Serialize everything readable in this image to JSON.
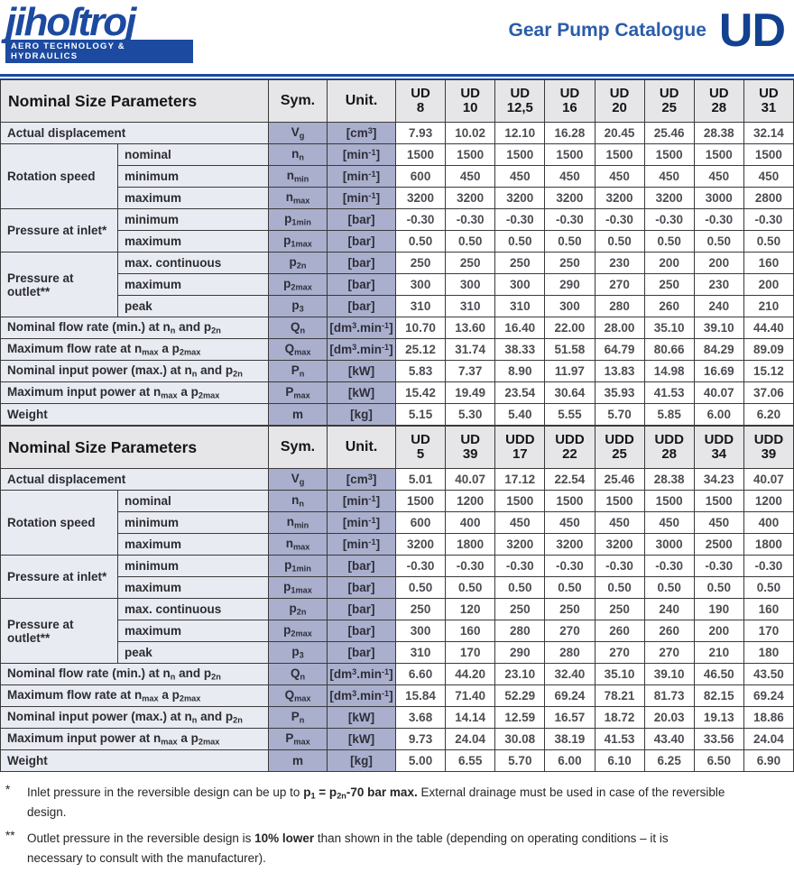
{
  "header": {
    "logo_text": "jihoſtroj",
    "logo_tagline": "AERO TECHNOLOGY & HYDRAULICS",
    "catalogue_title": "Gear Pump Catalogue",
    "series_code": "UD"
  },
  "colors": {
    "brand_blue": "#1c4aa0",
    "series_navy": "#12418f",
    "title_blue": "#2b5caa",
    "table_border": "#3a3a3a",
    "header_row_bg": "#e6e6e8",
    "label_bg": "#e9ebf3",
    "sym_unit_bg": "#a9afcc",
    "value_bg": "#ffffff"
  },
  "table_header": {
    "params_label": "Nominal Size Parameters",
    "sym_label": "Sym.",
    "unit_label": "Unit."
  },
  "tables": [
    {
      "columns": [
        {
          "series": "UD",
          "size": "8"
        },
        {
          "series": "UD",
          "size": "10"
        },
        {
          "series": "UD",
          "size": "12,5"
        },
        {
          "series": "UD",
          "size": "16"
        },
        {
          "series": "UD",
          "size": "20"
        },
        {
          "series": "UD",
          "size": "25"
        },
        {
          "series": "UD",
          "size": "28"
        },
        {
          "series": "UD",
          "size": "31"
        }
      ],
      "rows": [
        {
          "type": "full",
          "label": "Actual displacement",
          "sym": "V~g~",
          "unit": "[cm^3^]",
          "values": [
            "7.93",
            "10.02",
            "12.10",
            "16.28",
            "20.45",
            "25.46",
            "28.38",
            "32.14"
          ]
        },
        {
          "type": "group",
          "label": "Rotation speed",
          "items": [
            {
              "label": "nominal",
              "sym": "n~n~",
              "unit": "[min^-1^]",
              "values": [
                "1500",
                "1500",
                "1500",
                "1500",
                "1500",
                "1500",
                "1500",
                "1500"
              ]
            },
            {
              "label": "minimum",
              "sym": "n~min~",
              "unit": "[min^-1^]",
              "values": [
                "600",
                "450",
                "450",
                "450",
                "450",
                "450",
                "450",
                "450"
              ]
            },
            {
              "label": "maximum",
              "sym": "n~max~",
              "unit": "[min^-1^]",
              "values": [
                "3200",
                "3200",
                "3200",
                "3200",
                "3200",
                "3200",
                "3000",
                "2800"
              ]
            }
          ]
        },
        {
          "type": "group",
          "label": "Pressure at inlet*",
          "items": [
            {
              "label": "minimum",
              "sym": "p~1min~",
              "unit": "[bar]",
              "values": [
                "-0.30",
                "-0.30",
                "-0.30",
                "-0.30",
                "-0.30",
                "-0.30",
                "-0.30",
                "-0.30"
              ]
            },
            {
              "label": "maximum",
              "sym": "p~1max~",
              "unit": "[bar]",
              "values": [
                "0.50",
                "0.50",
                "0.50",
                "0.50",
                "0.50",
                "0.50",
                "0.50",
                "0.50"
              ]
            }
          ]
        },
        {
          "type": "group",
          "label": "Pressure at outlet**",
          "items": [
            {
              "label": "max. continuous",
              "sym": "p~2n~",
              "unit": "[bar]",
              "values": [
                "250",
                "250",
                "250",
                "250",
                "230",
                "200",
                "200",
                "160"
              ]
            },
            {
              "label": "maximum",
              "sym": "p~2max~",
              "unit": "[bar]",
              "values": [
                "300",
                "300",
                "300",
                "290",
                "270",
                "250",
                "230",
                "200"
              ]
            },
            {
              "label": "peak",
              "sym": "p~3~",
              "unit": "[bar]",
              "values": [
                "310",
                "310",
                "310",
                "300",
                "280",
                "260",
                "240",
                "210"
              ]
            }
          ]
        },
        {
          "type": "full",
          "label": "Nominal flow rate (min.) at n~n~ and p~2n~",
          "sym": "Q~n~",
          "unit": "[dm^3^.min^-1^]",
          "values": [
            "10.70",
            "13.60",
            "16.40",
            "22.00",
            "28.00",
            "35.10",
            "39.10",
            "44.40"
          ]
        },
        {
          "type": "full",
          "label": "Maximum flow rate at n~max~ a p~2max~",
          "sym": "Q~max~",
          "unit": "[dm^3^.min^-1^]",
          "values": [
            "25.12",
            "31.74",
            "38.33",
            "51.58",
            "64.79",
            "80.66",
            "84.29",
            "89.09"
          ]
        },
        {
          "type": "full",
          "label": "Nominal input power (max.) at n~n~ and p~2n~",
          "sym": "P~n~",
          "unit": "[kW]",
          "values": [
            "5.83",
            "7.37",
            "8.90",
            "11.97",
            "13.83",
            "14.98",
            "16.69",
            "15.12"
          ]
        },
        {
          "type": "full",
          "label": "Maximum input power at n~max~ a p~2max~",
          "sym": "P~max~",
          "unit": "[kW]",
          "values": [
            "15.42",
            "19.49",
            "23.54",
            "30.64",
            "35.93",
            "41.53",
            "40.07",
            "37.06"
          ]
        },
        {
          "type": "full",
          "label": "Weight",
          "sym": "m",
          "unit": "[kg]",
          "values": [
            "5.15",
            "5.30",
            "5.40",
            "5.55",
            "5.70",
            "5.85",
            "6.00",
            "6.20"
          ]
        }
      ]
    },
    {
      "columns": [
        {
          "series": "UD",
          "size": "5"
        },
        {
          "series": "UD",
          "size": "39"
        },
        {
          "series": "UDD",
          "size": "17"
        },
        {
          "series": "UDD",
          "size": "22"
        },
        {
          "series": "UDD",
          "size": "25"
        },
        {
          "series": "UDD",
          "size": "28"
        },
        {
          "series": "UDD",
          "size": "34"
        },
        {
          "series": "UDD",
          "size": "39"
        }
      ],
      "rows": [
        {
          "type": "full",
          "label": "Actual displacement",
          "sym": "V~g~",
          "unit": "[cm^3^]",
          "values": [
            "5.01",
            "40.07",
            "17.12",
            "22.54",
            "25.46",
            "28.38",
            "34.23",
            "40.07"
          ]
        },
        {
          "type": "group",
          "label": "Rotation speed",
          "items": [
            {
              "label": "nominal",
              "sym": "n~n~",
              "unit": "[min^-1^]",
              "values": [
                "1500",
                "1200",
                "1500",
                "1500",
                "1500",
                "1500",
                "1500",
                "1200"
              ]
            },
            {
              "label": "minimum",
              "sym": "n~min~",
              "unit": "[min^-1^]",
              "values": [
                "600",
                "400",
                "450",
                "450",
                "450",
                "450",
                "450",
                "400"
              ]
            },
            {
              "label": "maximum",
              "sym": "n~max~",
              "unit": "[min^-1^]",
              "values": [
                "3200",
                "1800",
                "3200",
                "3200",
                "3200",
                "3000",
                "2500",
                "1800"
              ]
            }
          ]
        },
        {
          "type": "group",
          "label": "Pressure at inlet*",
          "items": [
            {
              "label": "minimum",
              "sym": "p~1min~",
              "unit": "[bar]",
              "values": [
                "-0.30",
                "-0.30",
                "-0.30",
                "-0.30",
                "-0.30",
                "-0.30",
                "-0.30",
                "-0.30"
              ]
            },
            {
              "label": "maximum",
              "sym": "p~1max~",
              "unit": "[bar]",
              "values": [
                "0.50",
                "0.50",
                "0.50",
                "0.50",
                "0.50",
                "0.50",
                "0.50",
                "0.50"
              ]
            }
          ]
        },
        {
          "type": "group",
          "label": "Pressure at outlet**",
          "items": [
            {
              "label": "max. continuous",
              "sym": "p~2n~",
              "unit": "[bar]",
              "values": [
                "250",
                "120",
                "250",
                "250",
                "250",
                "240",
                "190",
                "160"
              ]
            },
            {
              "label": "maximum",
              "sym": "p~2max~",
              "unit": "[bar]",
              "values": [
                "300",
                "160",
                "280",
                "270",
                "260",
                "260",
                "200",
                "170"
              ]
            },
            {
              "label": "peak",
              "sym": "p~3~",
              "unit": "[bar]",
              "values": [
                "310",
                "170",
                "290",
                "280",
                "270",
                "270",
                "210",
                "180"
              ]
            }
          ]
        },
        {
          "type": "full",
          "label": "Nominal flow rate (min.) at n~n~ and p~2n~",
          "sym": "Q~n~",
          "unit": "[dm^3^.min^-1^]",
          "values": [
            "6.60",
            "44.20",
            "23.10",
            "32.40",
            "35.10",
            "39.10",
            "46.50",
            "43.50"
          ]
        },
        {
          "type": "full",
          "label": "Maximum flow rate at n~max~ a p~2max~",
          "sym": "Q~max~",
          "unit": "[dm^3^.min^-1^]",
          "values": [
            "15.84",
            "71.40",
            "52.29",
            "69.24",
            "78.21",
            "81.73",
            "82.15",
            "69.24"
          ]
        },
        {
          "type": "full",
          "label": "Nominal input power (max.) at n~n~ and p~2n~",
          "sym": "P~n~",
          "unit": "[kW]",
          "values": [
            "3.68",
            "14.14",
            "12.59",
            "16.57",
            "18.72",
            "20.03",
            "19.13",
            "18.86"
          ]
        },
        {
          "type": "full",
          "label": "Maximum input power at n~max~ a p~2max~",
          "sym": "P~max~",
          "unit": "[kW]",
          "values": [
            "9.73",
            "24.04",
            "30.08",
            "38.19",
            "41.53",
            "43.40",
            "33.56",
            "24.04"
          ]
        },
        {
          "type": "full",
          "label": "Weight",
          "sym": "m",
          "unit": "[kg]",
          "values": [
            "5.00",
            "6.55",
            "5.70",
            "6.00",
            "6.10",
            "6.25",
            "6.50",
            "6.90"
          ]
        }
      ]
    }
  ],
  "footnotes": [
    {
      "marker": "*",
      "text": "Inlet pressure in the reversible design can be up to **p~1~ = p~2n~-70 bar max.** External drainage must be used in case of the reversible design."
    },
    {
      "marker": "**",
      "text": "Outlet pressure in the reversible design is **10% lower** than shown in the table (depending on operating conditions – it is necessary to consult with the manufacturer)."
    }
  ]
}
